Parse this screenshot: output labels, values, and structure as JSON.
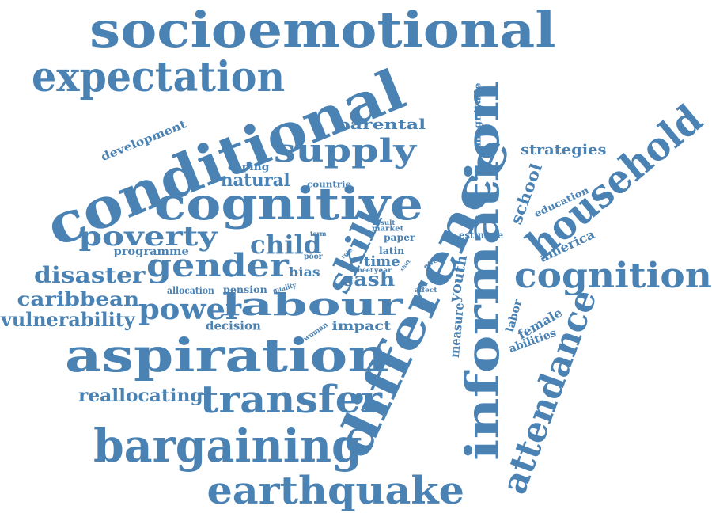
{
  "style": {
    "word_color": "#4a82b4",
    "background": "#ffffff"
  },
  "words": [
    "socioemotional",
    "expectation",
    "conditional",
    "supply",
    "parental",
    "development",
    "coping",
    "natural",
    "countrie",
    "cognitive",
    "poverty",
    "child",
    "term",
    "result",
    "market",
    "paper",
    "programme",
    "gender",
    "disaster",
    "poor",
    "bias",
    "role",
    "skill",
    "latin",
    "time",
    "cash",
    "effect",
    "affect",
    "caribbean",
    "allocation",
    "pension",
    "quality",
    "power",
    "labour",
    "vulnerability",
    "decision",
    "woman",
    "impact",
    "neet",
    "year",
    "shift",
    "aspiration",
    "reallocating",
    "transfer",
    "bargaining",
    "earthquake",
    "difference",
    "information",
    "magnitude",
    "strategies",
    "school",
    "education",
    "household",
    "estimate",
    "america",
    "youth",
    "measure",
    "cognition",
    "labor",
    "female",
    "abilities",
    "attendance"
  ]
}
